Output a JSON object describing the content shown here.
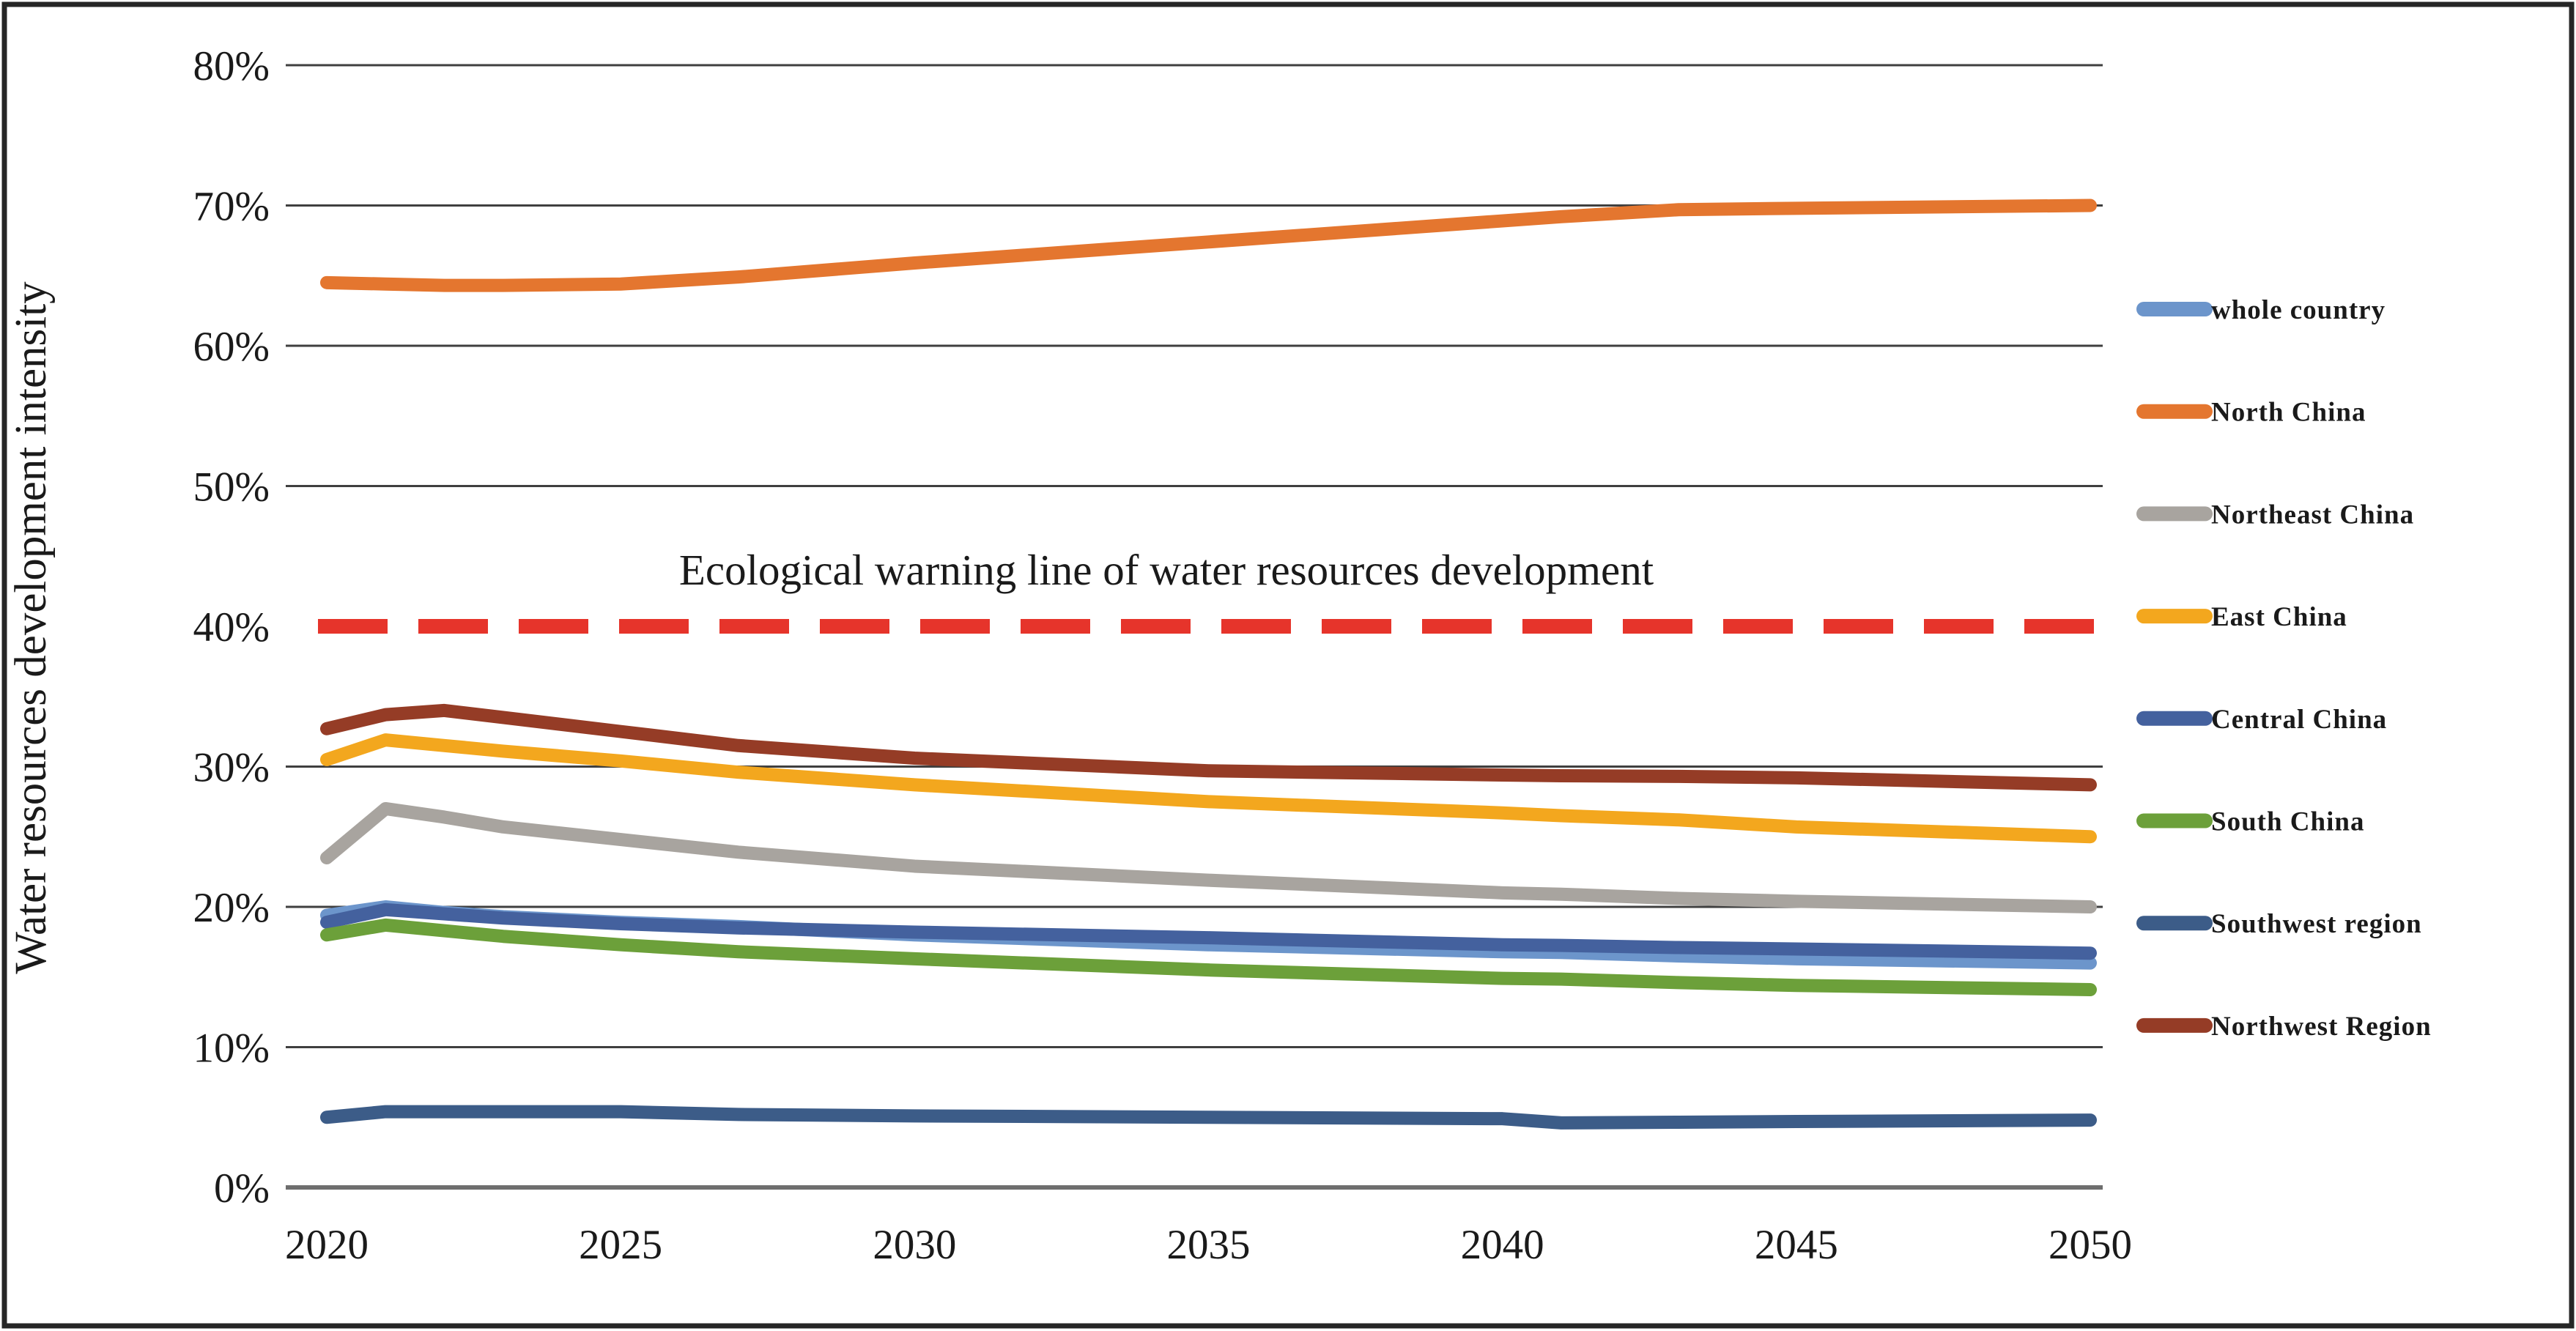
{
  "chart_data": {
    "type": "line",
    "title": "",
    "xlabel": "",
    "ylabel": "Water resources development intensity",
    "unit": "%",
    "ylim": [
      0,
      80
    ],
    "xlim": [
      2020,
      2050
    ],
    "grid": "horizontal",
    "legend_position": "right",
    "y_ticks": [
      {
        "value": 80,
        "label": "80%"
      },
      {
        "value": 70,
        "label": "70%"
      },
      {
        "value": 60,
        "label": "60%"
      },
      {
        "value": 50,
        "label": "50%"
      },
      {
        "value": 40,
        "label": "40%"
      },
      {
        "value": 30,
        "label": "30%"
      },
      {
        "value": 20,
        "label": "20%"
      },
      {
        "value": 10,
        "label": "10%"
      },
      {
        "value": 0,
        "label": "0%"
      }
    ],
    "x_ticks": [
      "2020",
      "2025",
      "2030",
      "2035",
      "2040",
      "2045",
      "2050"
    ],
    "x": [
      2020,
      2021,
      2022,
      2023,
      2025,
      2027,
      2030,
      2035,
      2040,
      2041,
      2043,
      2045,
      2050
    ],
    "series": [
      {
        "name": "whole country",
        "color": "#6C95CB",
        "values": [
          19.4,
          20.0,
          19.6,
          19.3,
          18.9,
          18.6,
          18.0,
          17.3,
          16.8,
          16.75,
          16.5,
          16.3,
          16.0
        ]
      },
      {
        "name": "North China",
        "color": "#E4762F",
        "values": [
          64.5,
          64.4,
          64.3,
          64.3,
          64.4,
          64.9,
          65.9,
          67.4,
          68.9,
          69.2,
          69.7,
          69.8,
          70.0
        ]
      },
      {
        "name": "Northeast China",
        "color": "#A8A49F",
        "values": [
          23.5,
          27.0,
          26.4,
          25.7,
          24.8,
          23.9,
          22.9,
          21.9,
          21.0,
          20.9,
          20.6,
          20.4,
          20.0
        ]
      },
      {
        "name": "East China",
        "color": "#F3A71E",
        "values": [
          30.5,
          31.9,
          31.5,
          31.1,
          30.4,
          29.6,
          28.7,
          27.5,
          26.7,
          26.5,
          26.2,
          25.7,
          25.0
        ]
      },
      {
        "name": "Central China",
        "color": "#44619E",
        "values": [
          18.9,
          19.8,
          19.5,
          19.2,
          18.8,
          18.5,
          18.2,
          17.8,
          17.3,
          17.25,
          17.1,
          17.0,
          16.7
        ]
      },
      {
        "name": "South China",
        "color": "#6CA03A",
        "values": [
          18.0,
          18.7,
          18.3,
          17.9,
          17.3,
          16.8,
          16.3,
          15.5,
          14.9,
          14.85,
          14.6,
          14.4,
          14.1
        ]
      },
      {
        "name": "Southwest region",
        "color": "#3C5C88",
        "values": [
          5.0,
          5.4,
          5.4,
          5.4,
          5.4,
          5.2,
          5.1,
          5.0,
          4.9,
          4.6,
          4.65,
          4.7,
          4.8
        ]
      },
      {
        "name": "Northwest Region",
        "color": "#953C26",
        "values": [
          32.7,
          33.7,
          34.0,
          33.5,
          32.5,
          31.5,
          30.6,
          29.7,
          29.4,
          29.35,
          29.3,
          29.2,
          28.7
        ]
      }
    ],
    "reference_line": {
      "y": 40,
      "label": "Ecological warning line of water resources development",
      "color": "#E6342B",
      "label_color": "#E03A33",
      "style": "dashed"
    }
  },
  "styles": {
    "text_color": "#1A1A1A",
    "grid_color": "#3F3F3F",
    "axis_color": "#6E6E6E",
    "border_color": "#262626",
    "background": "#FFFFFF"
  }
}
